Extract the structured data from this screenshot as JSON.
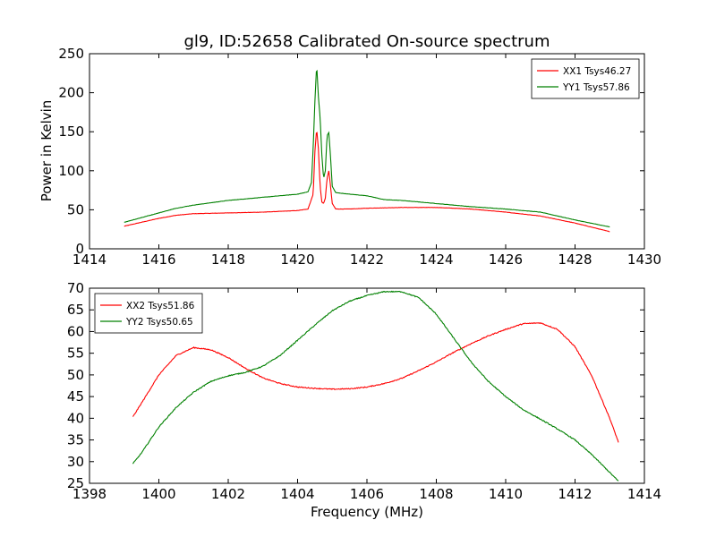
{
  "figure": {
    "title": "gl9, ID:52658 Calibrated On-source spectrum"
  },
  "chart_data": [
    {
      "type": "line",
      "title": "gl9, ID:52658 Calibrated On-source spectrum",
      "xlabel": "",
      "ylabel": "Power in Kelvin",
      "xlim": [
        1414,
        1430
      ],
      "ylim": [
        0,
        250
      ],
      "xticks": [
        "1414",
        "1416",
        "1418",
        "1420",
        "1422",
        "1424",
        "1426",
        "1428",
        "1430"
      ],
      "yticks": [
        "0",
        "50",
        "100",
        "150",
        "200",
        "250"
      ],
      "grid": false,
      "legend_position": "top-right",
      "series": [
        {
          "name": "XX1 Tsys46.27",
          "color": "#ff0000",
          "points": [
            [
              1415.0,
              29
            ],
            [
              1415.5,
              34
            ],
            [
              1416.0,
              39
            ],
            [
              1416.5,
              43
            ],
            [
              1417.0,
              45
            ],
            [
              1418.0,
              46
            ],
            [
              1419.0,
              47
            ],
            [
              1419.5,
              48
            ],
            [
              1420.0,
              49
            ],
            [
              1420.3,
              51
            ],
            [
              1420.45,
              70
            ],
            [
              1420.5,
              125
            ],
            [
              1420.55,
              154
            ],
            [
              1420.6,
              128
            ],
            [
              1420.65,
              80
            ],
            [
              1420.7,
              60
            ],
            [
              1420.75,
              58
            ],
            [
              1420.8,
              65
            ],
            [
              1420.85,
              90
            ],
            [
              1420.9,
              100
            ],
            [
              1420.95,
              80
            ],
            [
              1421.0,
              58
            ],
            [
              1421.1,
              51
            ],
            [
              1421.5,
              51
            ],
            [
              1422.0,
              52
            ],
            [
              1423.0,
              53
            ],
            [
              1424.0,
              53
            ],
            [
              1425.0,
              51
            ],
            [
              1426.0,
              47
            ],
            [
              1427.0,
              42
            ],
            [
              1428.0,
              33
            ],
            [
              1429.0,
              22
            ]
          ]
        },
        {
          "name": "YY1 Tsys57.86",
          "color": "#008000",
          "points": [
            [
              1415.0,
              34
            ],
            [
              1415.5,
              40
            ],
            [
              1416.0,
              46
            ],
            [
              1416.5,
              52
            ],
            [
              1417.0,
              56
            ],
            [
              1417.5,
              59
            ],
            [
              1418.0,
              62
            ],
            [
              1418.5,
              64
            ],
            [
              1419.0,
              66
            ],
            [
              1419.5,
              68
            ],
            [
              1420.0,
              70
            ],
            [
              1420.3,
              73
            ],
            [
              1420.4,
              85
            ],
            [
              1420.45,
              130
            ],
            [
              1420.5,
              190
            ],
            [
              1420.55,
              236
            ],
            [
              1420.6,
              195
            ],
            [
              1420.65,
              168
            ],
            [
              1420.7,
              120
            ],
            [
              1420.75,
              90
            ],
            [
              1420.8,
              100
            ],
            [
              1420.85,
              145
            ],
            [
              1420.9,
              149
            ],
            [
              1420.95,
              118
            ],
            [
              1421.0,
              80
            ],
            [
              1421.1,
              72
            ],
            [
              1421.5,
              70
            ],
            [
              1422.0,
              68
            ],
            [
              1422.5,
              63
            ],
            [
              1423.0,
              62
            ],
            [
              1424.0,
              58
            ],
            [
              1425.0,
              54
            ],
            [
              1426.0,
              51
            ],
            [
              1427.0,
              47
            ],
            [
              1428.0,
              37
            ],
            [
              1429.0,
              28
            ]
          ]
        }
      ]
    },
    {
      "type": "line",
      "title": "",
      "xlabel": "Frequency (MHz)",
      "ylabel": "",
      "xlim": [
        1398,
        1414
      ],
      "ylim": [
        25,
        70
      ],
      "xticks": [
        "1398",
        "1400",
        "1402",
        "1404",
        "1406",
        "1408",
        "1410",
        "1412",
        "1414"
      ],
      "yticks": [
        "25",
        "30",
        "35",
        "40",
        "45",
        "50",
        "55",
        "60",
        "65",
        "70"
      ],
      "grid": false,
      "legend_position": "top-left",
      "series": [
        {
          "name": "XX2 Tsys51.86",
          "color": "#ff0000",
          "points": [
            [
              1399.25,
              40.3
            ],
            [
              1399.5,
              43.5
            ],
            [
              1400.0,
              50
            ],
            [
              1400.5,
              54.5
            ],
            [
              1401.0,
              56.3
            ],
            [
              1401.5,
              55.8
            ],
            [
              1402.0,
              54
            ],
            [
              1402.5,
              51.5
            ],
            [
              1403.0,
              49.3
            ],
            [
              1403.5,
              48
            ],
            [
              1404.0,
              47.2
            ],
            [
              1404.5,
              46.9
            ],
            [
              1405.0,
              46.7
            ],
            [
              1405.5,
              46.8
            ],
            [
              1406.0,
              47.2
            ],
            [
              1406.5,
              48
            ],
            [
              1407.0,
              49.2
            ],
            [
              1407.5,
              51
            ],
            [
              1408.0,
              53
            ],
            [
              1408.5,
              55.2
            ],
            [
              1409.0,
              57.2
            ],
            [
              1409.5,
              59
            ],
            [
              1410.0,
              60.5
            ],
            [
              1410.5,
              61.8
            ],
            [
              1411.0,
              62
            ],
            [
              1411.5,
              60.5
            ],
            [
              1412.0,
              56.5
            ],
            [
              1412.5,
              49.5
            ],
            [
              1413.0,
              40
            ],
            [
              1413.25,
              34.5
            ]
          ]
        },
        {
          "name": "YY2 Tsys50.65",
          "color": "#008000",
          "points": [
            [
              1399.25,
              29.5
            ],
            [
              1399.5,
              32
            ],
            [
              1400.0,
              38
            ],
            [
              1400.5,
              42.5
            ],
            [
              1401.0,
              46
            ],
            [
              1401.5,
              48.5
            ],
            [
              1402.0,
              49.8
            ],
            [
              1402.5,
              50.6
            ],
            [
              1403.0,
              52
            ],
            [
              1403.5,
              54.5
            ],
            [
              1404.0,
              58
            ],
            [
              1404.5,
              61.5
            ],
            [
              1405.0,
              64.8
            ],
            [
              1405.5,
              67
            ],
            [
              1406.0,
              68.3
            ],
            [
              1406.5,
              69.2
            ],
            [
              1407.0,
              69.2
            ],
            [
              1407.5,
              67.8
            ],
            [
              1408.0,
              64
            ],
            [
              1408.5,
              58.5
            ],
            [
              1409.0,
              53
            ],
            [
              1409.5,
              48.5
            ],
            [
              1410.0,
              45
            ],
            [
              1410.5,
              42
            ],
            [
              1411.0,
              39.8
            ],
            [
              1411.5,
              37.5
            ],
            [
              1412.0,
              35
            ],
            [
              1412.5,
              31.5
            ],
            [
              1413.0,
              27.5
            ],
            [
              1413.25,
              25.5
            ]
          ]
        }
      ]
    }
  ]
}
